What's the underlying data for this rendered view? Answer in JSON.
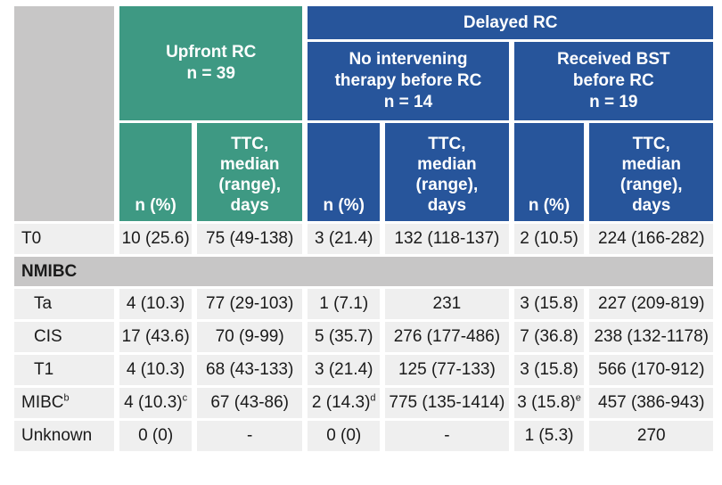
{
  "headers": {
    "upfront": {
      "line1": "Upfront RC",
      "line2": "n = 39"
    },
    "delayed": "Delayed RC",
    "no_intervening": {
      "line1": "No intervening",
      "line2": "therapy before RC",
      "line3": "n = 14"
    },
    "received_bst": {
      "line1": "Received BST",
      "line2": "before RC",
      "line3": "n = 19"
    },
    "n_pct": "n (%)",
    "ttc": {
      "line1": "TTC,",
      "line2": "median",
      "line3": "(range),",
      "line4": "days"
    }
  },
  "rows": {
    "t0": {
      "label": "T0",
      "c1": "10 (25.6)",
      "c2": "75 (49-138)",
      "c3": "3 (21.4)",
      "c4": "132 (118-137)",
      "c5": "2 (10.5)",
      "c6": "224 (166-282)"
    },
    "nmibc": "NMIBC",
    "ta": {
      "label": "Ta",
      "c1": "4 (10.3)",
      "c2": "77 (29-103)",
      "c3": "1 (7.1)",
      "c4": "231",
      "c5": "3 (15.8)",
      "c6": "227 (209-819)"
    },
    "cis": {
      "label": "CIS",
      "c1": "17 (43.6)",
      "c2": "70 (9-99)",
      "c3": "5 (35.7)",
      "c4": "276 (177-486)",
      "c5": "7 (36.8)",
      "c6": "238 (132-1178)"
    },
    "t1": {
      "label": "T1",
      "c1": "4 (10.3)",
      "c2": "68 (43-133)",
      "c3": "3 (21.4)",
      "c4": "125 (77-133)",
      "c5": "3 (15.8)",
      "c6": "566 (170-912)"
    },
    "mibc": {
      "label": "MIBC",
      "label_sup": "b",
      "c1": "4 (10.3)",
      "c1_sup": "c",
      "c2": "67 (43-86)",
      "c3": "2 (14.3)",
      "c3_sup": "d",
      "c4": "775 (135-1414)",
      "c5": "3 (15.8)",
      "c5_sup": "e",
      "c6": "457 (386-943)"
    },
    "unknown": {
      "label": "Unknown",
      "c1": "0 (0)",
      "c2": "-",
      "c3": "0 (0)",
      "c4": "-",
      "c5": "1 (5.3)",
      "c6": "270"
    }
  }
}
